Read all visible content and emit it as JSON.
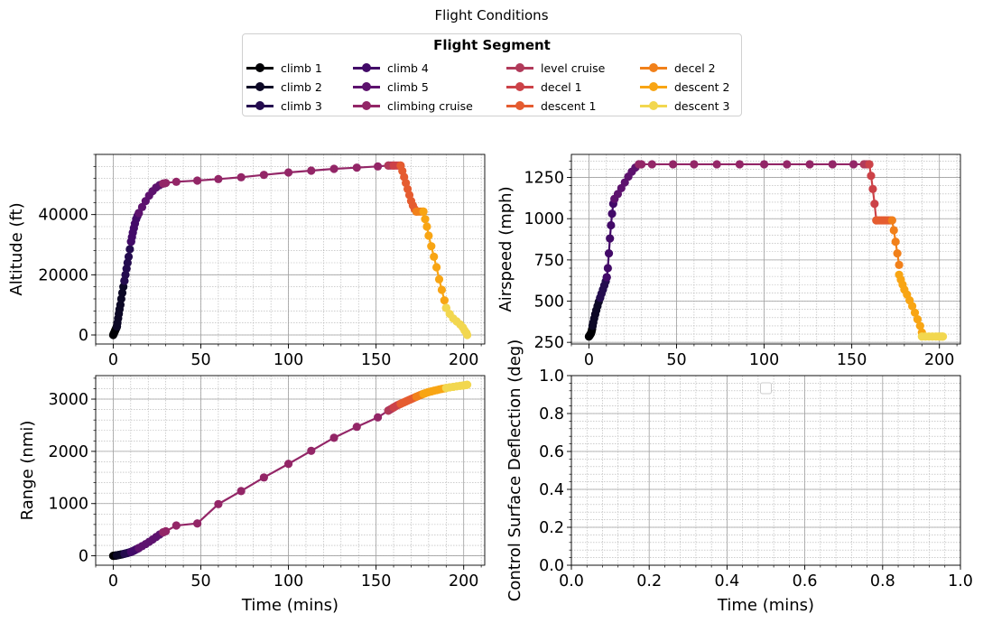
{
  "title": "Flight Conditions",
  "legend": {
    "title": "Flight Segment",
    "items": [
      {
        "label": "climb 1",
        "color": "#000004"
      },
      {
        "label": "climb 2",
        "color": "#0c0826"
      },
      {
        "label": "climb 3",
        "color": "#240c4f"
      },
      {
        "label": "climb 4",
        "color": "#420a68"
      },
      {
        "label": "climb 5",
        "color": "#5d126e"
      },
      {
        "label": "climbing cruise",
        "color": "#932667"
      },
      {
        "label": "level cruise",
        "color": "#b13a5a"
      },
      {
        "label": "decel 1",
        "color": "#cc4248"
      },
      {
        "label": "descent 1",
        "color": "#e55c30"
      },
      {
        "label": "decel 2",
        "color": "#f1801a"
      },
      {
        "label": "descent 2",
        "color": "#f8a514"
      },
      {
        "label": "descent 3",
        "color": "#f2d74f"
      }
    ]
  },
  "chart_data": [
    {
      "type": "line",
      "xlabel": "",
      "ylabel": "Altitude (ft)",
      "xlim": [
        -10,
        212
      ],
      "ylim": [
        -3000,
        60000
      ],
      "xticks": [
        0,
        50,
        100,
        150,
        200
      ],
      "yticks": [
        0,
        20000,
        40000
      ],
      "grid": true,
      "series": [
        {
          "name": "climb 1",
          "x": [
            0,
            0.3,
            0.6,
            0.9,
            1.2,
            1.5,
            1.8,
            2.1
          ],
          "y": [
            0,
            400,
            800,
            1200,
            1600,
            2000,
            2400,
            2800
          ]
        },
        {
          "name": "climb 2",
          "x": [
            2.1,
            2.4,
            2.8,
            3.2,
            3.6,
            4.1,
            4.6,
            5.2,
            5.8,
            6.4
          ],
          "y": [
            2800,
            4000,
            5500,
            7000,
            8500,
            10000,
            12000,
            14000,
            16000,
            18000
          ]
        },
        {
          "name": "climb 3",
          "x": [
            6.4,
            7.0,
            7.6,
            8.2,
            8.8,
            9.5,
            10.2
          ],
          "y": [
            18000,
            20000,
            22000,
            24000,
            26000,
            28500,
            31000
          ]
        },
        {
          "name": "climb 4",
          "x": [
            10.2,
            10.7,
            11.2,
            11.8,
            12.4,
            13.1,
            13.8,
            14.6
          ],
          "y": [
            31000,
            32500,
            34000,
            35500,
            37000,
            38500,
            39500,
            40500
          ]
        },
        {
          "name": "climb 5",
          "x": [
            14.6,
            16.5,
            18.5,
            20.5,
            22.5,
            24.5,
            26.5,
            28.5
          ],
          "y": [
            40500,
            42500,
            44500,
            46300,
            47800,
            49000,
            49800,
            50300
          ]
        },
        {
          "name": "climbing cruise",
          "x": [
            28.5,
            30,
            36,
            48,
            60,
            73,
            86,
            100,
            113,
            126,
            139,
            151,
            157
          ],
          "y": [
            50300,
            50500,
            50900,
            51300,
            51800,
            52400,
            53200,
            54000,
            54600,
            55200,
            55600,
            56000,
            56300
          ]
        },
        {
          "name": "level cruise",
          "x": [
            157,
            158,
            159,
            160
          ],
          "y": [
            56300,
            56300,
            56300,
            56300
          ]
        },
        {
          "name": "decel 1",
          "x": [
            160,
            161,
            162,
            163,
            164
          ],
          "y": [
            56300,
            56300,
            56300,
            56300,
            56300
          ]
        },
        {
          "name": "descent 1",
          "x": [
            164,
            165,
            166,
            167,
            168,
            169,
            170,
            171,
            172,
            173
          ],
          "y": [
            56300,
            54500,
            52500,
            50500,
            48500,
            46500,
            44500,
            43000,
            41800,
            41000
          ]
        },
        {
          "name": "decel 2",
          "x": [
            173,
            174,
            175,
            176,
            177
          ],
          "y": [
            41000,
            41000,
            41000,
            41000,
            41000
          ]
        },
        {
          "name": "descent 2",
          "x": [
            177,
            178,
            179,
            180,
            181.5,
            183,
            184.5,
            186,
            187.5,
            189,
            190
          ],
          "y": [
            41000,
            38500,
            36000,
            33000,
            29500,
            26000,
            22500,
            18500,
            15000,
            11500,
            9000
          ]
        },
        {
          "name": "descent 3",
          "x": [
            190,
            192,
            194,
            196,
            198,
            199.5,
            200.5,
            201.5,
            202
          ],
          "y": [
            9000,
            7000,
            5500,
            4500,
            3500,
            2500,
            1500,
            700,
            0
          ]
        }
      ]
    },
    {
      "type": "line",
      "xlabel": "",
      "ylabel": "Airspeed (mph)",
      "xlim": [
        -10,
        212
      ],
      "ylim": [
        240,
        1390
      ],
      "xticks": [
        0,
        50,
        100,
        150,
        200
      ],
      "yticks": [
        250,
        500,
        750,
        1000,
        1250
      ],
      "grid": true,
      "series": [
        {
          "name": "climb 1",
          "x": [
            0,
            0.3,
            0.6,
            0.9,
            1.2,
            1.5,
            1.8,
            2.1
          ],
          "y": [
            285,
            290,
            295,
            300,
            305,
            315,
            330,
            350
          ]
        },
        {
          "name": "climb 2",
          "x": [
            2.1,
            2.5,
            3.0,
            3.6,
            4.2,
            4.9,
            5.6,
            6.4
          ],
          "y": [
            350,
            370,
            395,
            420,
            445,
            470,
            495,
            520
          ]
        },
        {
          "name": "climb 3",
          "x": [
            6.4,
            7.2,
            8.0,
            8.8,
            9.6,
            10.2
          ],
          "y": [
            520,
            545,
            570,
            595,
            620,
            645
          ]
        },
        {
          "name": "climb 4",
          "x": [
            10.2,
            10.8,
            11.4,
            12.0,
            12.6,
            13.2,
            13.9,
            14.6
          ],
          "y": [
            645,
            700,
            790,
            880,
            960,
            1030,
            1090,
            1120
          ]
        },
        {
          "name": "climb 5",
          "x": [
            14.6,
            16.5,
            18.5,
            20.5,
            22.5,
            24.5,
            26.5,
            28.5
          ],
          "y": [
            1120,
            1150,
            1185,
            1220,
            1255,
            1285,
            1310,
            1330
          ]
        },
        {
          "name": "climbing cruise",
          "x": [
            28.5,
            30,
            36,
            48,
            60,
            73,
            86,
            100,
            113,
            126,
            139,
            151,
            157
          ],
          "y": [
            1330,
            1330,
            1330,
            1330,
            1330,
            1330,
            1330,
            1330,
            1330,
            1330,
            1330,
            1330,
            1330
          ]
        },
        {
          "name": "level cruise",
          "x": [
            157,
            158,
            159,
            160
          ],
          "y": [
            1330,
            1330,
            1330,
            1330
          ]
        },
        {
          "name": "decel 1",
          "x": [
            160,
            161,
            162,
            163,
            164
          ],
          "y": [
            1330,
            1260,
            1180,
            1090,
            990
          ]
        },
        {
          "name": "descent 1",
          "x": [
            164,
            165,
            166,
            167,
            168,
            169,
            170,
            171,
            172,
            173
          ],
          "y": [
            990,
            990,
            990,
            990,
            990,
            990,
            990,
            990,
            990,
            990
          ]
        },
        {
          "name": "decel 2",
          "x": [
            173,
            174,
            175,
            176,
            177
          ],
          "y": [
            990,
            930,
            860,
            790,
            720
          ]
        },
        {
          "name": "descent 2",
          "x": [
            177,
            178,
            179,
            180,
            181.5,
            183,
            184.5,
            186,
            187.5,
            189,
            190
          ],
          "y": [
            660,
            630,
            600,
            570,
            540,
            505,
            470,
            430,
            390,
            350,
            310
          ]
        },
        {
          "name": "descent 3",
          "x": [
            190,
            192,
            194,
            196,
            198,
            199.5,
            200.5,
            201.5,
            202
          ],
          "y": [
            285,
            285,
            285,
            285,
            285,
            285,
            285,
            285,
            285
          ]
        }
      ]
    },
    {
      "type": "line",
      "xlabel": "Time (mins)",
      "ylabel": "Range (nmi)",
      "xlim": [
        -10,
        212
      ],
      "ylim": [
        -180,
        3450
      ],
      "xticks": [
        0,
        50,
        100,
        150,
        200
      ],
      "yticks": [
        0,
        1000,
        2000,
        3000
      ],
      "grid": true,
      "series": [
        {
          "name": "climb 1",
          "x": [
            0,
            0.3,
            0.6,
            0.9,
            1.2,
            1.5,
            1.8,
            2.1
          ],
          "y": [
            0,
            1,
            2,
            3,
            4,
            5,
            7,
            9
          ]
        },
        {
          "name": "climb 2",
          "x": [
            2.1,
            2.5,
            3.0,
            3.6,
            4.2,
            4.9,
            5.6,
            6.4
          ],
          "y": [
            9,
            12,
            15,
            19,
            23,
            28,
            33,
            39
          ]
        },
        {
          "name": "climb 3",
          "x": [
            6.4,
            7.2,
            8.0,
            8.8,
            9.6,
            10.2
          ],
          "y": [
            39,
            46,
            53,
            61,
            69,
            76
          ]
        },
        {
          "name": "climb 4",
          "x": [
            10.2,
            10.8,
            11.4,
            12.0,
            12.6,
            13.2,
            13.9,
            14.6
          ],
          "y": [
            76,
            84,
            93,
            103,
            113,
            124,
            136,
            149
          ]
        },
        {
          "name": "climb 5",
          "x": [
            14.6,
            16.5,
            18.5,
            20.5,
            22.5,
            24.5,
            26.5,
            28.5
          ],
          "y": [
            149,
            185,
            225,
            268,
            313,
            360,
            408,
            450
          ]
        },
        {
          "name": "climbing cruise",
          "x": [
            28.5,
            30,
            36,
            48,
            60,
            73,
            86,
            100,
            113,
            126,
            139,
            151,
            157
          ],
          "y": [
            450,
            470,
            580,
            620,
            990,
            1240,
            1500,
            1760,
            2010,
            2260,
            2470,
            2650,
            2780
          ]
        },
        {
          "name": "level cruise",
          "x": [
            157,
            158,
            159,
            160
          ],
          "y": [
            2780,
            2800,
            2820,
            2840
          ]
        },
        {
          "name": "decel 1",
          "x": [
            160,
            161,
            162,
            163,
            164
          ],
          "y": [
            2840,
            2860,
            2880,
            2895,
            2910
          ]
        },
        {
          "name": "descent 1",
          "x": [
            164,
            165,
            166,
            167,
            168,
            169,
            170,
            171,
            172,
            173
          ],
          "y": [
            2910,
            2925,
            2940,
            2955,
            2970,
            2985,
            3000,
            3015,
            3030,
            3045
          ]
        },
        {
          "name": "decel 2",
          "x": [
            173,
            174,
            175,
            176,
            177
          ],
          "y": [
            3045,
            3060,
            3075,
            3088,
            3100
          ]
        },
        {
          "name": "descent 2",
          "x": [
            177,
            178,
            179,
            180,
            181.5,
            183,
            184.5,
            186,
            187.5,
            189,
            190
          ],
          "y": [
            3100,
            3112,
            3124,
            3135,
            3148,
            3160,
            3172,
            3184,
            3195,
            3205,
            3212
          ]
        },
        {
          "name": "descent 3",
          "x": [
            190,
            192,
            194,
            196,
            198,
            199.5,
            200.5,
            201.5,
            202
          ],
          "y": [
            3212,
            3225,
            3235,
            3245,
            3253,
            3260,
            3265,
            3270,
            3275
          ]
        }
      ]
    },
    {
      "type": "line",
      "xlabel": "Time (mins)",
      "ylabel": "Control Surface Deflection (deg)",
      "xlim": [
        0,
        1
      ],
      "ylim": [
        0,
        1
      ],
      "xticks": [
        0.0,
        0.2,
        0.4,
        0.6,
        0.8,
        1.0
      ],
      "yticks": [
        0.0,
        0.2,
        0.4,
        0.6,
        0.8,
        1.0
      ],
      "xtick_labels": [
        "0.0",
        "0.2",
        "0.4",
        "0.6",
        "0.8",
        "1.0"
      ],
      "ytick_labels": [
        "0.0",
        "0.2",
        "0.4",
        "0.6",
        "0.8",
        "1.0"
      ],
      "grid": true,
      "series": []
    }
  ]
}
